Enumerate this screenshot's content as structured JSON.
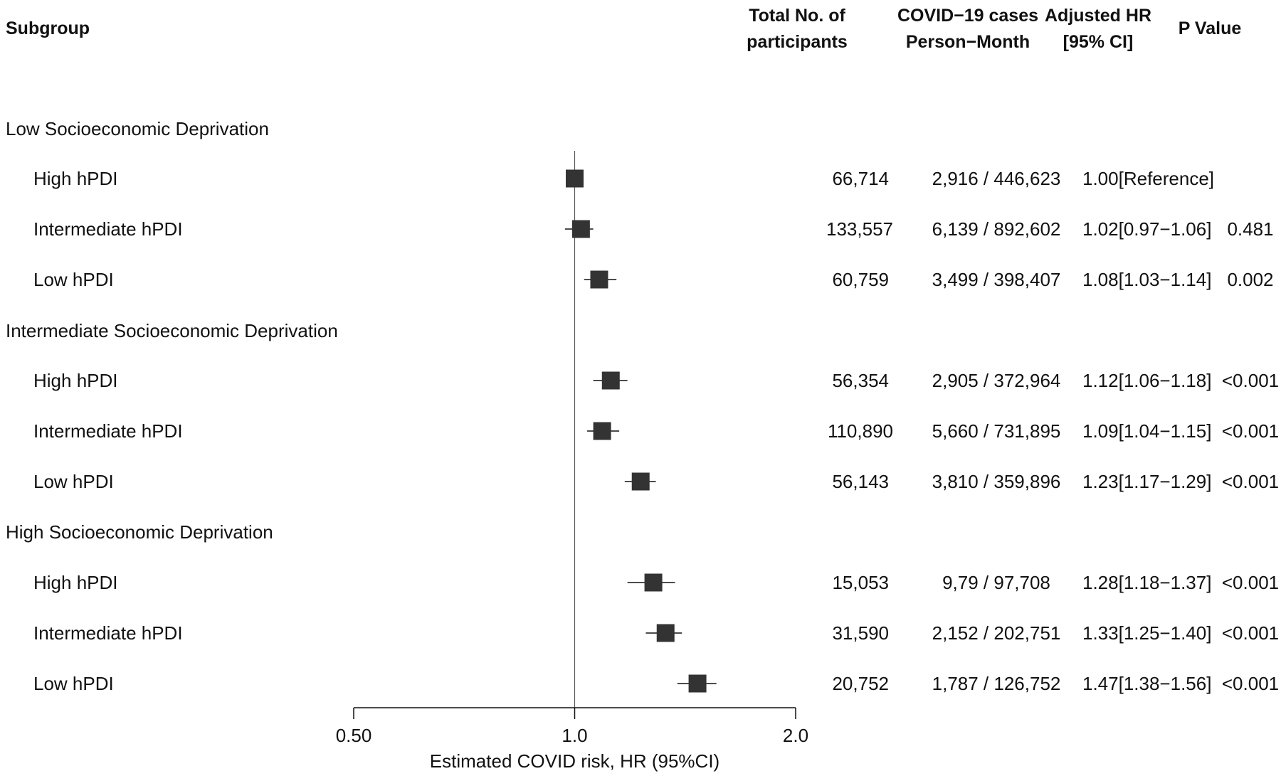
{
  "headers": {
    "subgroup": "Subgroup",
    "participants_1": "Total No. of",
    "participants_2": "participants",
    "cases_1": "COVID−19 cases",
    "cases_2": "Person−Month",
    "hr_1": "Adjusted HR",
    "hr_2": "[95% CI]",
    "p": "P Value"
  },
  "groups": [
    {
      "label": "Low Socioeconomic Deprivation"
    },
    {
      "label": "Intermediate Socioeconomic Deprivation"
    },
    {
      "label": "High Socioeconomic Deprivation"
    }
  ],
  "rows": [
    {
      "label": "High hPDI",
      "participants": "66,714",
      "cases": "2,916 / 446,623",
      "hr_text": "1.00[Reference]",
      "p": ""
    },
    {
      "label": "Intermediate hPDI",
      "participants": "133,557",
      "cases": "6,139 / 892,602",
      "hr_text": "1.02[0.97−1.06]",
      "p": "0.481"
    },
    {
      "label": "Low hPDI",
      "participants": "60,759",
      "cases": "3,499 / 398,407",
      "hr_text": "1.08[1.03−1.14]",
      "p": "0.002"
    },
    {
      "label": "High hPDI",
      "participants": "56,354",
      "cases": "2,905 / 372,964",
      "hr_text": "1.12[1.06−1.18]",
      "p": "<0.001"
    },
    {
      "label": "Intermediate hPDI",
      "participants": "110,890",
      "cases": "5,660 / 731,895",
      "hr_text": "1.09[1.04−1.15]",
      "p": "<0.001"
    },
    {
      "label": "Low hPDI",
      "participants": "56,143",
      "cases": "3,810 / 359,896",
      "hr_text": "1.23[1.17−1.29]",
      "p": "<0.001"
    },
    {
      "label": "High hPDI",
      "participants": "15,053",
      "cases": "9,79 / 97,708",
      "hr_text": "1.28[1.18−1.37]",
      "p": "<0.001"
    },
    {
      "label": "Intermediate hPDI",
      "participants": "31,590",
      "cases": "2,152 / 202,751",
      "hr_text": "1.33[1.25−1.40]",
      "p": "<0.001"
    },
    {
      "label": "Low hPDI",
      "participants": "20,752",
      "cases": "1,787 / 126,752",
      "hr_text": "1.47[1.38−1.56]",
      "p": "<0.001"
    }
  ],
  "chart_data": {
    "type": "forest",
    "scale": "log",
    "xlabel": "Estimated COVID risk, HR (95%CI)",
    "xlim": [
      0.5,
      2.0
    ],
    "ticks": [
      0.5,
      1.0,
      2.0
    ],
    "tick_labels": [
      "0.50",
      "1.0",
      "2.0"
    ],
    "reference_line": 1.0,
    "marker_color": "#333333",
    "points": [
      {
        "hr": 1.0,
        "lo": 1.0,
        "hi": 1.0
      },
      {
        "hr": 1.02,
        "lo": 0.97,
        "hi": 1.06
      },
      {
        "hr": 1.08,
        "lo": 1.03,
        "hi": 1.14
      },
      {
        "hr": 1.12,
        "lo": 1.06,
        "hi": 1.18
      },
      {
        "hr": 1.09,
        "lo": 1.04,
        "hi": 1.15
      },
      {
        "hr": 1.23,
        "lo": 1.17,
        "hi": 1.29
      },
      {
        "hr": 1.28,
        "lo": 1.18,
        "hi": 1.37
      },
      {
        "hr": 1.33,
        "lo": 1.25,
        "hi": 1.4
      },
      {
        "hr": 1.47,
        "lo": 1.38,
        "hi": 1.56
      }
    ]
  }
}
